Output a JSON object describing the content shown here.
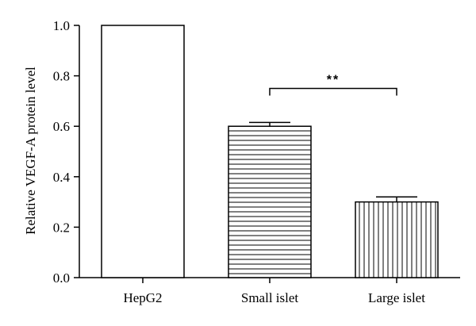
{
  "chart_data": {
    "type": "bar",
    "title": "",
    "xlabel": "",
    "ylabel": "Relative VEGF-A protein level",
    "ylim": [
      0,
      1.0
    ],
    "yticks": [
      "0.0",
      "0.2",
      "0.4",
      "0.6",
      "0.8",
      "1.0"
    ],
    "grid": false,
    "categories": [
      "HepG2",
      "Small islet",
      "Large islet"
    ],
    "values": [
      1.0,
      0.6,
      0.3
    ],
    "error": [
      0,
      0.015,
      0.02
    ],
    "fill_patterns": [
      "none",
      "horizontal-lines",
      "vertical-lines"
    ],
    "annotations": [
      {
        "label": "**",
        "from": "Small islet",
        "to": "Large islet"
      }
    ]
  }
}
